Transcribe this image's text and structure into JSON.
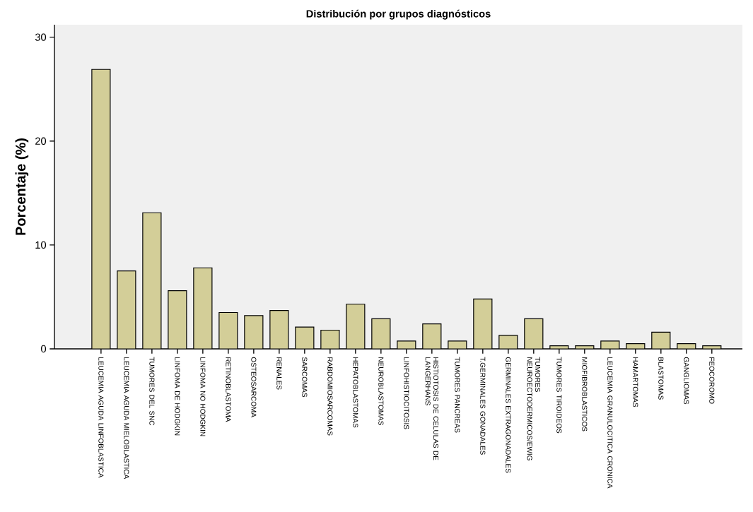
{
  "chart_data": {
    "type": "bar",
    "title": "Distribución por grupos diagnósticos",
    "ylabel": "Porcentaje (%)",
    "categories": [
      "LEUCEMIA AGUDA LINFOBLASTICA",
      "LEUCEMIA AGUDA MIELOBLASTICA",
      "TUMORES DEL SNC",
      "LINFOMA DE HODGKIN",
      "LINFOMA NO HODGKIN",
      "RETINOBLASTOMA",
      "OSTEOSARCOMA",
      "RENALES",
      "SARCOMAS",
      "RABDOMIOSARCOMAS",
      "HEPATOBLASTOMAS",
      "NEUROBLASTOMAS",
      "LINFOHISTIOCITOSIS",
      "HISTIOTOSIS DE CELULAS DE LANGERHANS",
      "TUMORES PANCREAS",
      "T.GERMINALES GONADALES",
      "GERMINALES EXTRAGONADALES",
      "TUMORES NEUROECTODERMICOS/EWIG",
      "TUMORES TIROIDEOS",
      "MIOFIBROBLASTICOS",
      "LEUCEMIA GRANULOCITICA CRONICA",
      "HAMARTOMAS",
      "BLASTOMAS",
      "GANGLIOMAS",
      "FEOCOROMO"
    ],
    "values": [
      26.9,
      7.5,
      13.1,
      5.6,
      7.8,
      3.5,
      3.2,
      3.7,
      2.1,
      1.8,
      4.3,
      2.9,
      0.75,
      2.4,
      0.75,
      4.8,
      1.3,
      2.9,
      0.3,
      0.3,
      0.75,
      0.5,
      1.6,
      0.5,
      0.3
    ],
    "color": "#d3ce98",
    "ylim": [
      0,
      31.2
    ],
    "yticks": [
      0,
      10,
      20,
      30
    ]
  }
}
